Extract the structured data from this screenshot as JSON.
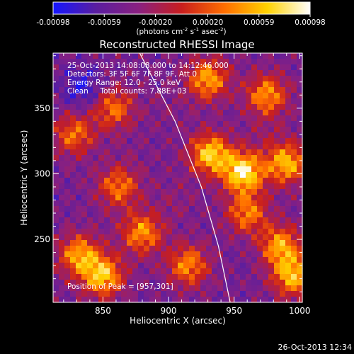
{
  "chart_data": {
    "type": "heatmap",
    "title": "Reconstructed RHESSI Image",
    "xlabel": "Heliocentric X (arcsec)",
    "ylabel": "Heliocentric Y (arcsec)",
    "xlim": [
      812,
      1002
    ],
    "ylim": [
      202,
      392
    ],
    "x_ticks": [
      850,
      900,
      950,
      1000
    ],
    "y_ticks": [
      250,
      300,
      350
    ],
    "colorbar": {
      "range": [
        -0.00098,
        0.00098
      ],
      "ticks": [
        "-0.00098",
        "-0.00059",
        "-0.00020",
        "0.00020",
        "0.00059",
        "0.00098"
      ],
      "units_parts": [
        "(photons cm",
        "-2",
        " s",
        "-1",
        " asec",
        "-2",
        ")"
      ],
      "colormap": [
        "#1515ff",
        "#5a1ea0",
        "#8a2080",
        "#c81e1e",
        "#ff6e00",
        "#ffd200",
        "#ffffff"
      ]
    },
    "annotations": [
      "25-Oct-2013 14:08:08.000 to 14:12:46.000",
      "Detectors: 3F 5F 6F 7F 8F 9F, Att 0",
      "Energy Range: 12.0 - 25.0 keV",
      "Clean     Total counts: 7.88E+03"
    ],
    "peak_label": "Position of Peak = [957,301]",
    "peak": [
      957,
      301
    ],
    "limb_curve": [
      [
        878,
        392
      ],
      [
        905,
        340
      ],
      [
        925,
        290
      ],
      [
        938,
        245
      ],
      [
        947,
        202
      ]
    ],
    "sources": [
      {
        "x": 957,
        "y": 301,
        "value": 0.00098
      },
      {
        "x": 932,
        "y": 315,
        "value": 0.0008
      },
      {
        "x": 990,
        "y": 308,
        "value": 0.0007
      },
      {
        "x": 930,
        "y": 372,
        "value": 0.00062
      },
      {
        "x": 975,
        "y": 360,
        "value": 0.00055
      },
      {
        "x": 850,
        "y": 222,
        "value": 0.00075
      },
      {
        "x": 832,
        "y": 238,
        "value": 0.0006
      },
      {
        "x": 880,
        "y": 255,
        "value": 0.00055
      },
      {
        "x": 915,
        "y": 230,
        "value": 0.0005
      },
      {
        "x": 985,
        "y": 245,
        "value": 0.0006
      },
      {
        "x": 995,
        "y": 222,
        "value": 0.0007
      },
      {
        "x": 960,
        "y": 270,
        "value": 0.00045
      },
      {
        "x": 862,
        "y": 290,
        "value": 0.00042
      },
      {
        "x": 828,
        "y": 330,
        "value": 0.00038
      },
      {
        "x": 858,
        "y": 350,
        "value": 0.0004
      },
      {
        "x": 835,
        "y": 365,
        "value": -0.0009
      },
      {
        "x": 870,
        "y": 318,
        "value": -0.0004
      },
      {
        "x": 960,
        "y": 235,
        "value": -0.0005
      },
      {
        "x": 905,
        "y": 280,
        "value": -0.0003
      },
      {
        "x": 900,
        "y": 350,
        "value": -0.00035
      },
      {
        "x": 975,
        "y": 330,
        "value": -0.0003
      }
    ],
    "grid": false
  },
  "timestamp": "26-Oct-2013 12:34"
}
